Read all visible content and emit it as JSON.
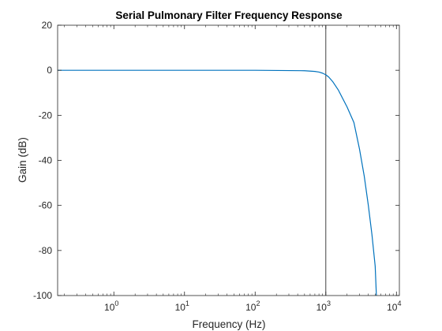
{
  "chart_data": {
    "type": "line",
    "title": "Serial Pulmonary Filter Frequency Response",
    "xlabel": "Frequency (Hz)",
    "ylabel": "Gain (dB)",
    "xscale": "log",
    "xlim": [
      0.16,
      11000
    ],
    "ylim": [
      -100,
      20
    ],
    "xticks": [
      1,
      10,
      100,
      1000,
      10000
    ],
    "xtick_base": "10",
    "xtick_exponents": [
      "0",
      "1",
      "2",
      "3",
      "4"
    ],
    "yticks": [
      20,
      0,
      -20,
      -40,
      -60,
      -80,
      -100
    ],
    "ytick_labels": [
      "20",
      "0",
      "-20",
      "-40",
      "-60",
      "-80",
      "-100"
    ],
    "grid": false,
    "legend": "none",
    "box": true,
    "reference_line": {
      "orientation": "vertical",
      "x": 1000,
      "color": "#404040"
    },
    "series": [
      {
        "color": "#0072BD",
        "x": [
          0.16,
          1,
          10,
          100,
          500,
          700,
          800,
          900,
          1000,
          1100,
          1250,
          1500,
          2000,
          2500,
          3000,
          3500,
          4000,
          4500,
          5000,
          5200
        ],
        "y": [
          0,
          0,
          0,
          0,
          -0.2,
          -0.5,
          -0.8,
          -1.3,
          -2.0,
          -3.0,
          -5.0,
          -8.7,
          -16.3,
          -23.2,
          -35,
          -47,
          -60,
          -73,
          -87,
          -100
        ]
      }
    ]
  }
}
